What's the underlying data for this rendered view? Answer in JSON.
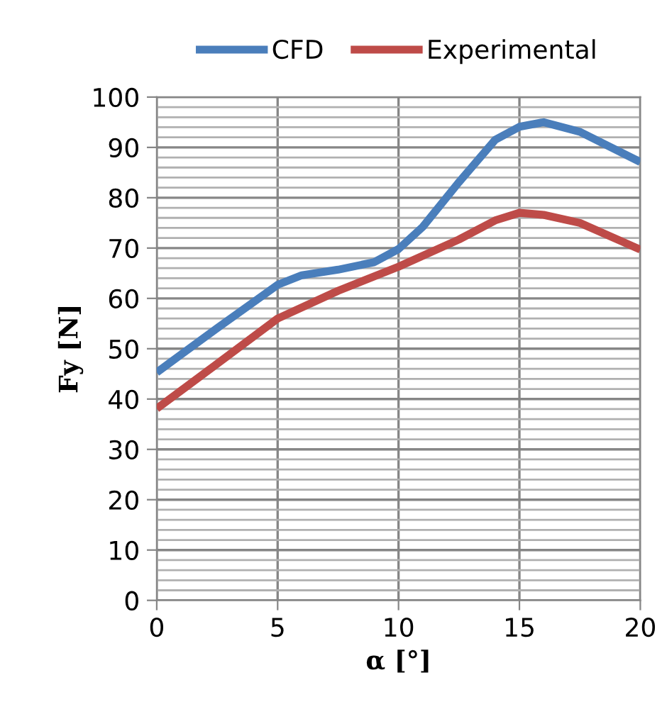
{
  "chart_data": {
    "type": "line",
    "xlabel": "α [°]",
    "ylabel": "Fy [N]",
    "series": [
      {
        "name": "CFD",
        "color": "#4a7ebb",
        "x": [
          0,
          2.5,
          5,
          6,
          7.5,
          9,
          10,
          11,
          12.5,
          14,
          15,
          16,
          17.5,
          20
        ],
        "values": [
          45.3,
          54.1,
          62.7,
          64.6,
          65.7,
          67.2,
          69.8,
          74.2,
          83.1,
          91.5,
          94.1,
          95,
          93.1,
          87.1
        ]
      },
      {
        "name": "Experimental",
        "color": "#be4b48",
        "x": [
          0,
          2.5,
          5,
          7.5,
          10,
          12.5,
          14,
          15,
          16,
          17.5,
          20
        ],
        "values": [
          38.1,
          47,
          56,
          61.5,
          66.3,
          71.7,
          75.5,
          77,
          76.6,
          75,
          69.7
        ]
      }
    ],
    "xlim": [
      0,
      20
    ],
    "xticks": [
      0,
      5,
      10,
      15,
      20
    ],
    "ylim": [
      0,
      100
    ],
    "yticks": [
      0,
      10,
      20,
      30,
      40,
      50,
      60,
      70,
      80,
      90,
      100
    ],
    "grid": true,
    "legend": "top",
    "marker": "none",
    "line_style": "solid"
  }
}
